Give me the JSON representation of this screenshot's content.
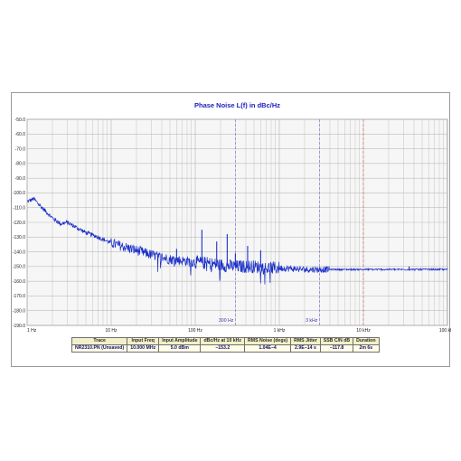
{
  "chart_data": {
    "type": "line",
    "title": "Phase Noise L(f) in dBc/Hz",
    "x_scale": "log",
    "xlim": [
      1,
      100000
    ],
    "ylim": [
      -190,
      -50
    ],
    "x_ticks": [
      "1 Hz",
      "10 Hz",
      "100 Hz",
      "1 kHz",
      "10 kHz",
      "100 kHz"
    ],
    "y_ticks": [
      "-50.0",
      "-60.0",
      "-70.0",
      "-80.0",
      "-90.0",
      "-100.0",
      "-110.0",
      "-120.0",
      "-130.0",
      "-140.0",
      "-150.0",
      "-160.0",
      "-170.0",
      "-180.0",
      "-190.0"
    ],
    "grid": true,
    "background_color": "#ffffff",
    "plot_color": "#f6f6f6",
    "grid_color": "#bcbcbc",
    "series_color": "#1a2ec8",
    "markers": [
      {
        "x": 300,
        "label": "300 Hz",
        "color": "#7a7ad8"
      },
      {
        "x": 3000,
        "label": "3 kHz",
        "color": "#7a7ad8"
      },
      {
        "x": 10000,
        "label": "",
        "color": "#e07070"
      }
    ],
    "series": [
      {
        "x": [
          1,
          1.2,
          1.5,
          2,
          2.5,
          3,
          4,
          5,
          7,
          10,
          15,
          20,
          30,
          50,
          70,
          100,
          150,
          200,
          300,
          500,
          700,
          1000,
          2000,
          5000,
          10000,
          20000,
          50000,
          100000
        ],
        "y": [
          -106,
          -104,
          -110,
          -117,
          -121,
          -120,
          -124,
          -127,
          -130,
          -134,
          -137,
          -139,
          -142,
          -145,
          -146,
          -147,
          -148,
          -149,
          -150,
          -150,
          -151,
          -151,
          -152,
          -152,
          -152,
          -152,
          -152,
          -152
        ]
      }
    ],
    "spurs": [
      {
        "x": 60,
        "y": -138
      },
      {
        "x": 100,
        "y": -147
      },
      {
        "x": 120,
        "y": -125
      },
      {
        "x": 180,
        "y": -133
      },
      {
        "x": 240,
        "y": -128
      },
      {
        "x": 300,
        "y": -141
      },
      {
        "x": 420,
        "y": -136
      },
      {
        "x": 600,
        "y": -139
      },
      {
        "x": 35000,
        "y": -150
      }
    ]
  },
  "table": {
    "headers": [
      "Trace",
      "Input Freq",
      "Input Amplitude",
      "dBc/Hz at 10 kHz",
      "RMS Noise (degs)",
      "RMS Jitter",
      "SSB C/N dB",
      "Duration"
    ],
    "row": [
      "NR2310.PN  (Unsaved)",
      "10.000 MHz",
      "5.0 dBm",
      "−153.2",
      "1.04E−4",
      "2.9E−14 s",
      "−117.8",
      "2m 6s"
    ]
  }
}
